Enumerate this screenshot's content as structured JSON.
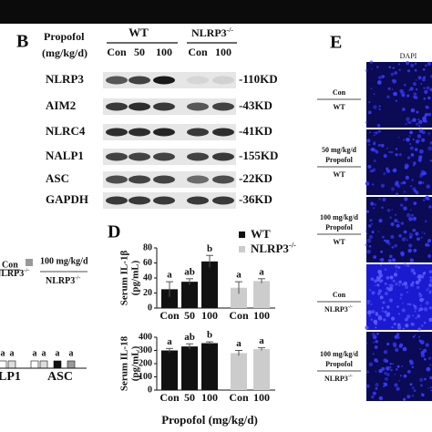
{
  "panel_b": {
    "label": "B",
    "propofol": "Propofol",
    "units": "(mg/kg/d)",
    "groups": [
      {
        "name": "WT",
        "lanes": [
          "Con",
          "50",
          "100"
        ]
      },
      {
        "name": "NLRP3",
        "sup": "-/-",
        "lanes": [
          "Con",
          "100"
        ]
      }
    ],
    "rows": [
      {
        "protein": "NLRP3",
        "size": "-110KD"
      },
      {
        "protein": "AIM2",
        "size": "-43KD"
      },
      {
        "protein": "NLRC4",
        "size": "-41KD"
      },
      {
        "protein": "NALP1",
        "size": "-155KD"
      },
      {
        "protein": "ASC",
        "size": "-22KD"
      },
      {
        "protein": "GAPDH",
        "size": "-36KD"
      }
    ]
  },
  "panel_left": {
    "legend": [
      {
        "above": "Con",
        "below": "NLRP3",
        "sup": "-/-"
      },
      {
        "above": "100 mg/kg/d",
        "below": "NLRP3",
        "sup": "-/-"
      }
    ],
    "letters": [
      "a",
      "a",
      "a",
      "a",
      "a",
      "a"
    ],
    "labels": [
      "LP1",
      "ASC"
    ]
  },
  "panel_d": {
    "label": "D",
    "x_label": "Propofol (mg/kg/d)",
    "chart_data": [
      {
        "type": "bar",
        "y_label": [
          "Serum IL-1β",
          "(pg/mL)"
        ],
        "categories": [
          "Con",
          "50",
          "100",
          "Con",
          "100"
        ],
        "series": [
          {
            "name": "WT",
            "color": "#111111",
            "values": [
              25,
              35,
              62,
              null,
              null
            ],
            "errors": [
              10,
              4,
              8,
              null,
              null
            ]
          },
          {
            "name": "NLRP3",
            "sup": "-/-",
            "color": "#cccccc",
            "values": [
              null,
              null,
              null,
              27,
              36
            ],
            "errors": [
              null,
              null,
              null,
              8,
              3
            ]
          }
        ],
        "annotations": [
          "a",
          "ab",
          "b",
          "a",
          "a"
        ],
        "ylim": [
          0,
          80
        ],
        "yticks": [
          0,
          20,
          40,
          60,
          80
        ]
      },
      {
        "type": "bar",
        "y_label": [
          "Serum IL-18",
          "(pg/mL)"
        ],
        "categories": [
          "Con",
          "50",
          "100",
          "Con",
          "100"
        ],
        "series": [
          {
            "color": "#111111",
            "values": [
              300,
              330,
              355,
              null,
              null
            ],
            "errors": [
              15,
              20,
              10,
              null,
              null
            ]
          },
          {
            "color": "#cccccc",
            "values": [
              null,
              null,
              null,
              280,
              310
            ],
            "errors": [
              null,
              null,
              null,
              20,
              10
            ]
          }
        ],
        "annotations": [
          "a",
          "ab",
          "b",
          "a",
          "a"
        ],
        "ylim": [
          0,
          400
        ],
        "yticks": [
          0,
          100,
          200,
          300,
          400
        ]
      }
    ]
  },
  "panel_e": {
    "label": "E",
    "channel": "DAPI",
    "conditions": [
      {
        "above": [
          "Con"
        ],
        "below": "WT"
      },
      {
        "above": [
          "50 mg/kg/d",
          "Propofol"
        ],
        "below": "WT"
      },
      {
        "above": [
          "100 mg/kg/d",
          "Propofol"
        ],
        "below": "WT"
      },
      {
        "above": [
          "Con"
        ],
        "below": "NLRP3",
        "sup": "-/-"
      },
      {
        "above": [
          "100 mg/kg/d",
          "Propofol"
        ],
        "below": "NLRP3",
        "sup": "-/-"
      }
    ]
  }
}
